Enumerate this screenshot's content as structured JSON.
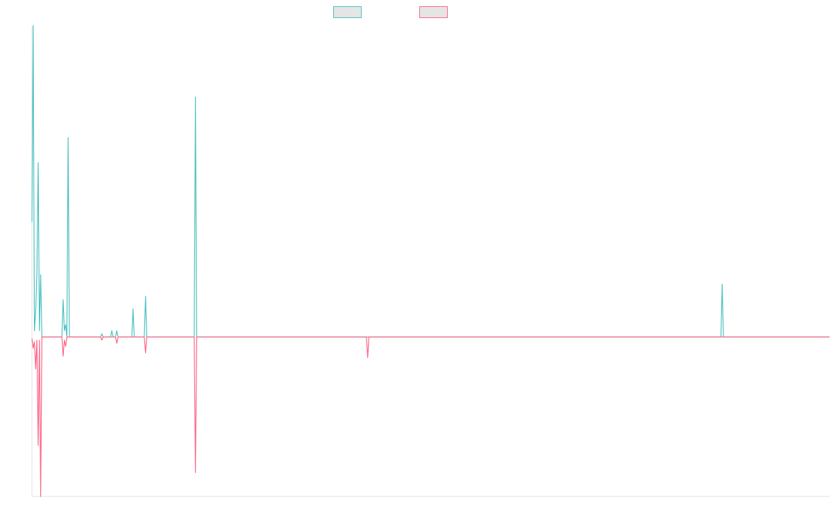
{
  "chart_data": {
    "type": "line",
    "title": "",
    "xlabel": "",
    "ylabel": "",
    "x_count": 640,
    "xlim": [
      0,
      639
    ],
    "ylim": [
      -100,
      100
    ],
    "baseline": 0,
    "grid": false,
    "legend": {
      "placement": "top-center"
    },
    "series": [
      {
        "color": "#4bc0c0",
        "fill": "#e5e5e5",
        "points": [
          [
            0,
            37
          ],
          [
            1,
            100
          ],
          [
            2,
            2
          ],
          [
            3,
            8
          ],
          [
            4,
            21
          ],
          [
            5,
            56
          ],
          [
            6,
            2
          ],
          [
            7,
            20
          ],
          [
            8,
            0
          ],
          [
            24,
            0
          ],
          [
            25,
            12
          ],
          [
            26,
            2
          ],
          [
            27,
            4
          ],
          [
            28,
            0
          ],
          [
            29,
            64
          ],
          [
            30,
            0
          ],
          [
            55,
            0
          ],
          [
            56,
            1
          ],
          [
            57,
            0
          ],
          [
            63,
            0
          ],
          [
            64,
            2
          ],
          [
            65,
            0
          ],
          [
            67,
            0
          ],
          [
            68,
            2
          ],
          [
            69,
            0
          ],
          [
            80,
            0
          ],
          [
            81,
            9
          ],
          [
            82,
            0
          ],
          [
            90,
            0
          ],
          [
            91,
            13
          ],
          [
            92,
            0
          ],
          [
            130,
            0
          ],
          [
            131,
            77
          ],
          [
            132,
            0
          ],
          [
            552,
            0
          ],
          [
            553,
            17
          ],
          [
            554,
            0
          ],
          [
            639,
            0
          ]
        ]
      },
      {
        "color": "#ff6384",
        "fill": "#e5e5e5",
        "points": [
          [
            0,
            -1
          ],
          [
            1,
            -7
          ],
          [
            2,
            -3
          ],
          [
            3,
            -20
          ],
          [
            4,
            -2
          ],
          [
            5,
            -68
          ],
          [
            6,
            -2
          ],
          [
            7,
            -100
          ],
          [
            8,
            0
          ],
          [
            24,
            0
          ],
          [
            25,
            -12
          ],
          [
            26,
            -2
          ],
          [
            27,
            -6
          ],
          [
            28,
            0
          ],
          [
            55,
            0
          ],
          [
            56,
            -2
          ],
          [
            57,
            0
          ],
          [
            67,
            0
          ],
          [
            68,
            -4
          ],
          [
            69,
            0
          ],
          [
            90,
            0
          ],
          [
            91,
            -10
          ],
          [
            92,
            0
          ],
          [
            130,
            0
          ],
          [
            131,
            -85
          ],
          [
            132,
            0
          ],
          [
            268,
            0
          ],
          [
            269,
            -13
          ],
          [
            270,
            0
          ],
          [
            639,
            0
          ]
        ]
      }
    ]
  }
}
